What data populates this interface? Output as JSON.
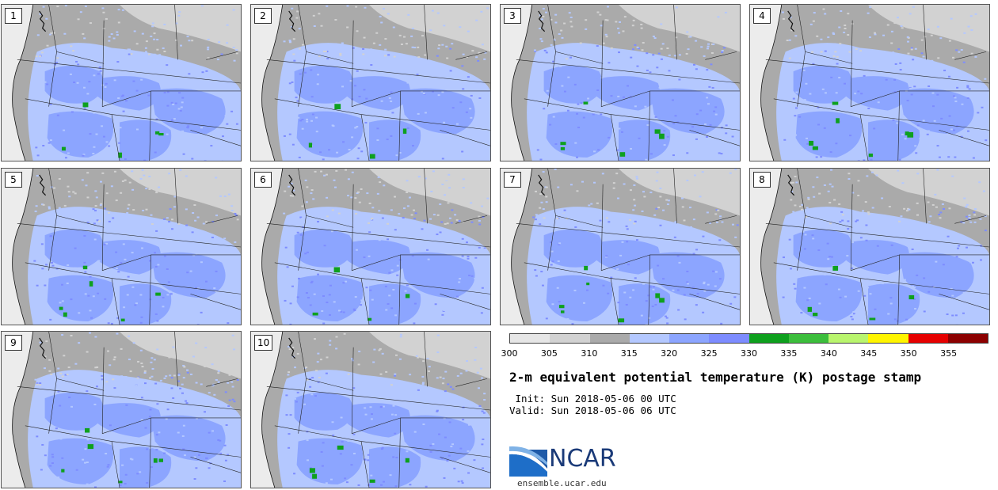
{
  "members": [
    "1",
    "2",
    "3",
    "4",
    "5",
    "6",
    "7",
    "8",
    "9",
    "10"
  ],
  "colorbar": {
    "ticks": [
      "300",
      "305",
      "310",
      "315",
      "320",
      "325",
      "330",
      "335",
      "340",
      "345",
      "350",
      "355"
    ],
    "colors": [
      "#e6e6e6",
      "#d2d2d2",
      "#aaaaaa",
      "#b4c8ff",
      "#8ca5ff",
      "#7d8cff",
      "#0ea01e",
      "#3cbe3c",
      "#b9f56e",
      "#fff500",
      "#e60000",
      "#8c0000"
    ]
  },
  "title": "2-m equivalent potential temperature (K) postage stamp",
  "init_text": " Init: Sun 2018-05-06 00 UTC",
  "valid_text": "Valid: Sun 2018-05-06 06 UTC",
  "logo": {
    "name": "NCAR",
    "url_text": "ensemble.ucar.edu"
  },
  "map_colors": {
    "ocean": "#ececec",
    "land_cool": "#aaaaaa",
    "land_mid": "#d2d2d2",
    "light_blue": "#b4c8ff",
    "mid_blue": "#8ca5ff",
    "deep_blue": "#7d8cff",
    "green": "#0ea01e"
  }
}
